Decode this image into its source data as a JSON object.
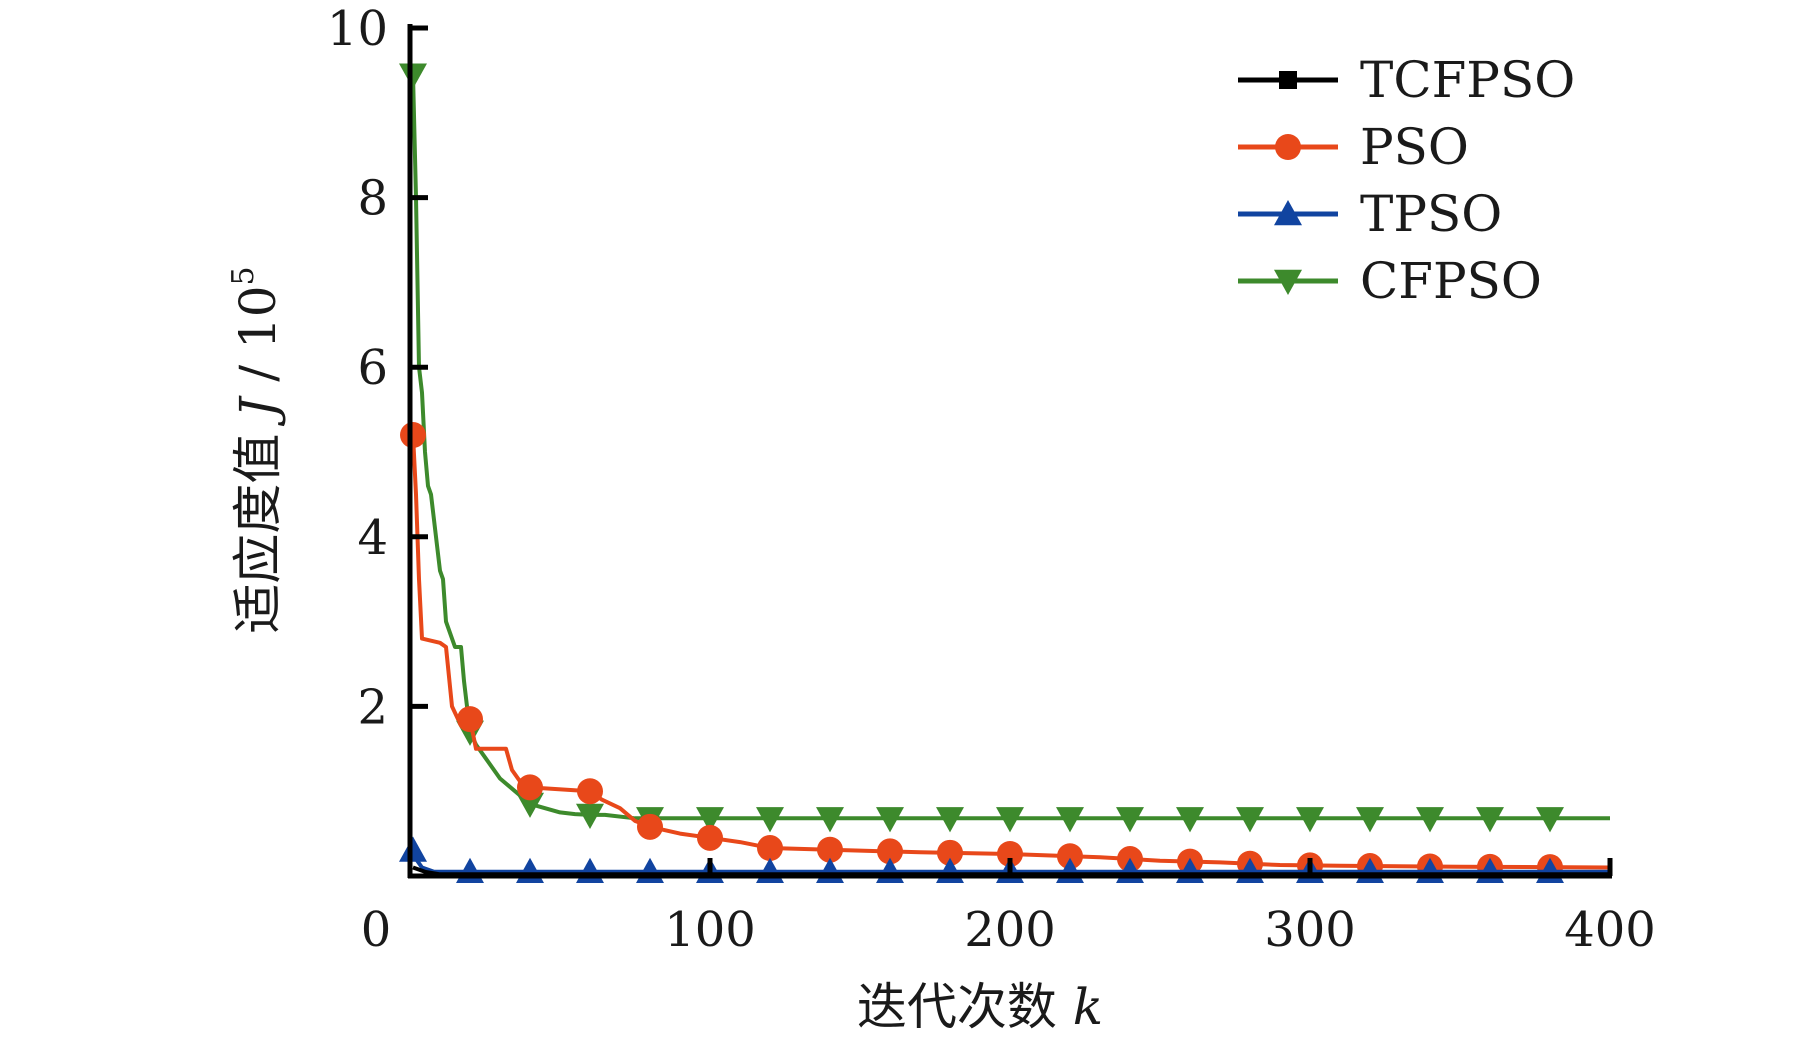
{
  "chart_data": {
    "type": "line",
    "xlabel": "迭代次数 k",
    "ylabel": "适应度值 J / 10^5",
    "ylabel_parts": {
      "main": "适应度值 ",
      "symbol": "J",
      "unit": " / 10",
      "exp": "5"
    },
    "xlabel_parts": {
      "main": "迭代次数 ",
      "symbol": "k"
    },
    "xlim": [
      0,
      400
    ],
    "ylim": [
      0,
      10
    ],
    "x_ticks": [
      0,
      100,
      200,
      300,
      400
    ],
    "y_ticks": [
      2,
      4,
      6,
      8,
      10
    ],
    "x_tick_labels": [
      "0",
      "100",
      "200",
      "300",
      "400"
    ],
    "y_tick_labels": [
      "2",
      "4",
      "6",
      "8",
      "10"
    ],
    "grid": false,
    "legend_position": "top-right",
    "series": [
      {
        "name": "TCFPSO",
        "color": "#000000",
        "marker": "square",
        "points": [
          [
            1,
            0.1
          ],
          [
            5,
            0.05
          ],
          [
            10,
            0.02
          ],
          [
            400,
            0.02
          ]
        ],
        "markers_x": []
      },
      {
        "name": "PSO",
        "color": "#e8481a",
        "marker": "circle",
        "points": [
          [
            1,
            5.2
          ],
          [
            2,
            4.5
          ],
          [
            3,
            3.5
          ],
          [
            4,
            2.8
          ],
          [
            10,
            2.75
          ],
          [
            12,
            2.7
          ],
          [
            14,
            2.0
          ],
          [
            16,
            1.85
          ],
          [
            20,
            1.85
          ],
          [
            22,
            1.5
          ],
          [
            32,
            1.5
          ],
          [
            34,
            1.25
          ],
          [
            38,
            1.05
          ],
          [
            60,
            1.0
          ],
          [
            64,
            0.9
          ],
          [
            70,
            0.8
          ],
          [
            75,
            0.65
          ],
          [
            80,
            0.58
          ],
          [
            90,
            0.5
          ],
          [
            100,
            0.45
          ],
          [
            110,
            0.4
          ],
          [
            120,
            0.33
          ],
          [
            130,
            0.32
          ],
          [
            150,
            0.3
          ],
          [
            170,
            0.28
          ],
          [
            200,
            0.26
          ],
          [
            230,
            0.22
          ],
          [
            250,
            0.18
          ],
          [
            270,
            0.16
          ],
          [
            290,
            0.13
          ],
          [
            310,
            0.12
          ],
          [
            350,
            0.11
          ],
          [
            400,
            0.1
          ]
        ],
        "markers_x": [
          1,
          20,
          40,
          60,
          80,
          100,
          120,
          140,
          160,
          180,
          200,
          220,
          240,
          260,
          280,
          300,
          320,
          340,
          360,
          380
        ]
      },
      {
        "name": "TPSO",
        "color": "#1144a0",
        "marker": "triangle-up",
        "points": [
          [
            1,
            0.3
          ],
          [
            2,
            0.2
          ],
          [
            4,
            0.1
          ],
          [
            8,
            0.05
          ],
          [
            400,
            0.05
          ]
        ],
        "markers_x": [
          1,
          20,
          40,
          60,
          80,
          100,
          120,
          140,
          160,
          180,
          200,
          220,
          240,
          260,
          280,
          300,
          320,
          340,
          360,
          380
        ]
      },
      {
        "name": "CFPSO",
        "color": "#3d8a2c",
        "marker": "triangle-down",
        "points": [
          [
            1,
            9.45
          ],
          [
            2,
            8.0
          ],
          [
            3,
            6.0
          ],
          [
            4,
            5.7
          ],
          [
            5,
            5.0
          ],
          [
            6,
            4.6
          ],
          [
            7,
            4.5
          ],
          [
            9,
            3.9
          ],
          [
            10,
            3.6
          ],
          [
            11,
            3.5
          ],
          [
            12,
            3.0
          ],
          [
            15,
            2.7
          ],
          [
            17,
            2.7
          ],
          [
            18,
            2.3
          ],
          [
            20,
            1.7
          ],
          [
            22,
            1.55
          ],
          [
            25,
            1.4
          ],
          [
            30,
            1.15
          ],
          [
            35,
            1.0
          ],
          [
            40,
            0.85
          ],
          [
            45,
            0.8
          ],
          [
            50,
            0.75
          ],
          [
            55,
            0.73
          ],
          [
            60,
            0.72
          ],
          [
            65,
            0.72
          ],
          [
            75,
            0.68
          ],
          [
            400,
            0.68
          ]
        ],
        "markers_x": [
          1,
          20,
          40,
          60,
          80,
          100,
          120,
          140,
          160,
          180,
          200,
          220,
          240,
          260,
          280,
          300,
          320,
          340,
          360,
          380
        ]
      }
    ]
  }
}
